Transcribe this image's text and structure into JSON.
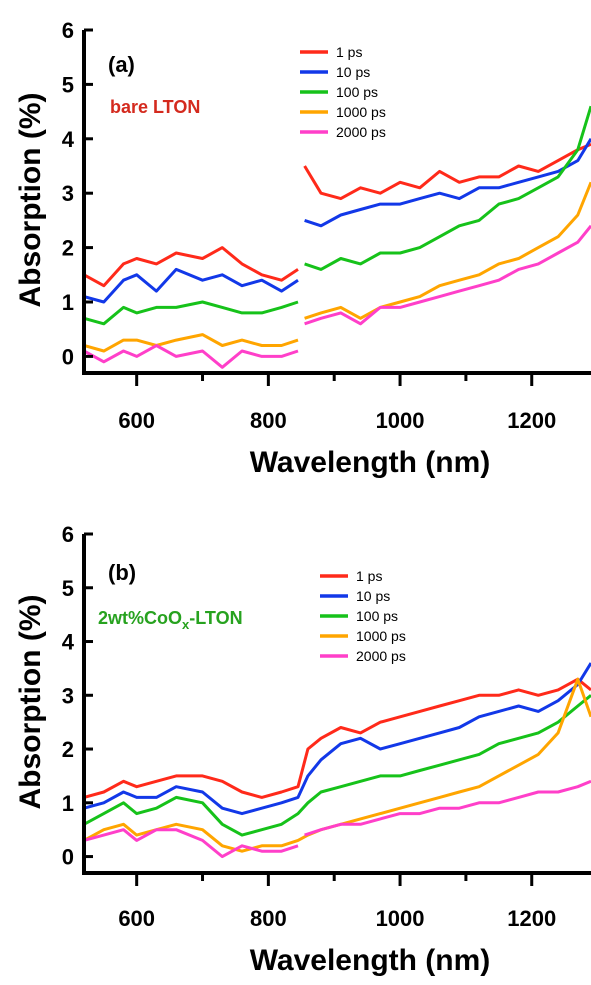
{
  "colors": {
    "1 ps": "#ff2a1a",
    "10 ps": "#1238e8",
    "100 ps": "#16c21a",
    "1000 ps": "#ffa500",
    "2000 ps": "#ff3fc9",
    "sample_a": "#d42a1e",
    "sample_b": "#27a21f"
  },
  "chart_data": [
    {
      "type": "line",
      "panel_label": "(a)",
      "sample_label": "bare LTON",
      "xlabel": "Wavelength (nm)",
      "ylabel": "Absorption (%)",
      "xlim": [
        520,
        1290
      ],
      "ylim": [
        -0.25,
        6
      ],
      "xticks": [
        600,
        800,
        1000,
        1200
      ],
      "yticks": [
        0,
        1,
        2,
        3,
        4,
        5,
        6
      ],
      "legend_position": "top-right",
      "grid": false,
      "series": [
        {
          "name": "1 ps",
          "segments": [
            {
              "x": [
                520,
                550,
                580,
                600,
                630,
                660,
                700,
                730,
                760,
                790,
                820,
                845
              ],
              "y": [
                1.5,
                1.3,
                1.7,
                1.8,
                1.7,
                1.9,
                1.8,
                2.0,
                1.7,
                1.5,
                1.4,
                1.6
              ]
            },
            {
              "x": [
                855,
                880,
                910,
                940,
                970,
                1000,
                1030,
                1060,
                1090,
                1120,
                1150,
                1180,
                1210,
                1240,
                1270,
                1290
              ],
              "y": [
                3.5,
                3.0,
                2.9,
                3.1,
                3.0,
                3.2,
                3.1,
                3.4,
                3.2,
                3.3,
                3.3,
                3.5,
                3.4,
                3.6,
                3.8,
                3.9
              ]
            }
          ]
        },
        {
          "name": "10 ps",
          "segments": [
            {
              "x": [
                520,
                550,
                580,
                600,
                630,
                660,
                700,
                730,
                760,
                790,
                820,
                845
              ],
              "y": [
                1.1,
                1.0,
                1.4,
                1.5,
                1.2,
                1.6,
                1.4,
                1.5,
                1.3,
                1.4,
                1.2,
                1.4
              ]
            },
            {
              "x": [
                855,
                880,
                910,
                940,
                970,
                1000,
                1030,
                1060,
                1090,
                1120,
                1150,
                1180,
                1210,
                1240,
                1270,
                1290
              ],
              "y": [
                2.5,
                2.4,
                2.6,
                2.7,
                2.8,
                2.8,
                2.9,
                3.0,
                2.9,
                3.1,
                3.1,
                3.2,
                3.3,
                3.4,
                3.6,
                4.0
              ]
            }
          ]
        },
        {
          "name": "100 ps",
          "segments": [
            {
              "x": [
                520,
                550,
                580,
                600,
                630,
                660,
                700,
                730,
                760,
                790,
                820,
                845
              ],
              "y": [
                0.7,
                0.6,
                0.9,
                0.8,
                0.9,
                0.9,
                1.0,
                0.9,
                0.8,
                0.8,
                0.9,
                1.0
              ]
            },
            {
              "x": [
                855,
                880,
                910,
                940,
                970,
                1000,
                1030,
                1060,
                1090,
                1120,
                1150,
                1180,
                1210,
                1240,
                1270,
                1290
              ],
              "y": [
                1.7,
                1.6,
                1.8,
                1.7,
                1.9,
                1.9,
                2.0,
                2.2,
                2.4,
                2.5,
                2.8,
                2.9,
                3.1,
                3.3,
                3.8,
                4.6
              ]
            }
          ]
        },
        {
          "name": "1000 ps",
          "segments": [
            {
              "x": [
                520,
                550,
                580,
                600,
                630,
                660,
                700,
                730,
                760,
                790,
                820,
                845
              ],
              "y": [
                0.2,
                0.1,
                0.3,
                0.3,
                0.2,
                0.3,
                0.4,
                0.2,
                0.3,
                0.2,
                0.2,
                0.3
              ]
            },
            {
              "x": [
                855,
                880,
                910,
                940,
                970,
                1000,
                1030,
                1060,
                1090,
                1120,
                1150,
                1180,
                1210,
                1240,
                1270,
                1290
              ],
              "y": [
                0.7,
                0.8,
                0.9,
                0.7,
                0.9,
                1.0,
                1.1,
                1.3,
                1.4,
                1.5,
                1.7,
                1.8,
                2.0,
                2.2,
                2.6,
                3.2
              ]
            }
          ]
        },
        {
          "name": "2000 ps",
          "segments": [
            {
              "x": [
                520,
                550,
                580,
                600,
                630,
                660,
                700,
                730,
                760,
                790,
                820,
                845
              ],
              "y": [
                0.1,
                -0.1,
                0.1,
                0.0,
                0.2,
                0.0,
                0.1,
                -0.2,
                0.1,
                0.0,
                0.0,
                0.1
              ]
            },
            {
              "x": [
                855,
                880,
                910,
                940,
                970,
                1000,
                1030,
                1060,
                1090,
                1120,
                1150,
                1180,
                1210,
                1240,
                1270,
                1290
              ],
              "y": [
                0.6,
                0.7,
                0.8,
                0.6,
                0.9,
                0.9,
                1.0,
                1.1,
                1.2,
                1.3,
                1.4,
                1.6,
                1.7,
                1.9,
                2.1,
                2.4
              ]
            }
          ]
        }
      ]
    },
    {
      "type": "line",
      "panel_label": "(b)",
      "sample_label_main": "2wt%CoO",
      "sample_label_sub": "x",
      "sample_label_tail": "-LTON",
      "xlabel": "Wavelength (nm)",
      "ylabel": "Absorption (%)",
      "xlim": [
        520,
        1290
      ],
      "ylim": [
        -0.25,
        6
      ],
      "xticks": [
        600,
        800,
        1000,
        1200
      ],
      "yticks": [
        0,
        1,
        2,
        3,
        4,
        5,
        6
      ],
      "legend_position": "top-right",
      "grid": false,
      "series": [
        {
          "name": "1 ps",
          "segments": [
            {
              "x": [
                520,
                550,
                580,
                600,
                630,
                660,
                700,
                730,
                760,
                790,
                820,
                845,
                860,
                880,
                910,
                940,
                970,
                1000,
                1030,
                1060,
                1090,
                1120,
                1150,
                1180,
                1210,
                1240,
                1270,
                1290
              ],
              "y": [
                1.1,
                1.2,
                1.4,
                1.3,
                1.4,
                1.5,
                1.5,
                1.4,
                1.2,
                1.1,
                1.2,
                1.3,
                2.0,
                2.2,
                2.4,
                2.3,
                2.5,
                2.6,
                2.7,
                2.8,
                2.9,
                3.0,
                3.0,
                3.1,
                3.0,
                3.1,
                3.3,
                3.1
              ]
            }
          ]
        },
        {
          "name": "10 ps",
          "segments": [
            {
              "x": [
                520,
                550,
                580,
                600,
                630,
                660,
                700,
                730,
                760,
                790,
                820,
                845,
                860,
                880,
                910,
                940,
                970,
                1000,
                1030,
                1060,
                1090,
                1120,
                1150,
                1180,
                1210,
                1240,
                1270,
                1290
              ],
              "y": [
                0.9,
                1.0,
                1.2,
                1.1,
                1.1,
                1.3,
                1.2,
                0.9,
                0.8,
                0.9,
                1.0,
                1.1,
                1.5,
                1.8,
                2.1,
                2.2,
                2.0,
                2.1,
                2.2,
                2.3,
                2.4,
                2.6,
                2.7,
                2.8,
                2.7,
                2.9,
                3.2,
                3.6
              ]
            }
          ]
        },
        {
          "name": "100 ps",
          "segments": [
            {
              "x": [
                520,
                550,
                580,
                600,
                630,
                660,
                700,
                730,
                760,
                790,
                820,
                845,
                860,
                880,
                910,
                940,
                970,
                1000,
                1030,
                1060,
                1090,
                1120,
                1150,
                1180,
                1210,
                1240,
                1270,
                1290
              ],
              "y": [
                0.6,
                0.8,
                1.0,
                0.8,
                0.9,
                1.1,
                1.0,
                0.6,
                0.4,
                0.5,
                0.6,
                0.8,
                1.0,
                1.2,
                1.3,
                1.4,
                1.5,
                1.5,
                1.6,
                1.7,
                1.8,
                1.9,
                2.1,
                2.2,
                2.3,
                2.5,
                2.8,
                3.0
              ]
            }
          ]
        },
        {
          "name": "1000 ps",
          "segments": [
            {
              "x": [
                520,
                550,
                580,
                600,
                630,
                660,
                700,
                730,
                760,
                790,
                820,
                845,
                860,
                880,
                910,
                940,
                970,
                1000,
                1030,
                1060,
                1090,
                1120,
                1150,
                1180,
                1210,
                1240,
                1270,
                1290
              ],
              "y": [
                0.3,
                0.5,
                0.6,
                0.4,
                0.5,
                0.6,
                0.5,
                0.2,
                0.1,
                0.2,
                0.2,
                0.3,
                0.4,
                0.5,
                0.6,
                0.7,
                0.8,
                0.9,
                1.0,
                1.1,
                1.2,
                1.3,
                1.5,
                1.7,
                1.9,
                2.3,
                3.3,
                2.6
              ]
            }
          ]
        },
        {
          "name": "2000 ps",
          "segments": [
            {
              "x": [
                520,
                550,
                580,
                600,
                630,
                660,
                700,
                730,
                760,
                790,
                820,
                845
              ],
              "y": [
                0.3,
                0.4,
                0.5,
                0.3,
                0.5,
                0.5,
                0.3,
                0.0,
                0.2,
                0.1,
                0.1,
                0.2
              ]
            },
            {
              "x": [
                855,
                880,
                910,
                940,
                970,
                1000,
                1030,
                1060,
                1090,
                1120,
                1150,
                1180,
                1210,
                1240,
                1270,
                1290
              ],
              "y": [
                0.4,
                0.5,
                0.6,
                0.6,
                0.7,
                0.8,
                0.8,
                0.9,
                0.9,
                1.0,
                1.0,
                1.1,
                1.2,
                1.2,
                1.3,
                1.4
              ]
            }
          ]
        }
      ]
    }
  ]
}
